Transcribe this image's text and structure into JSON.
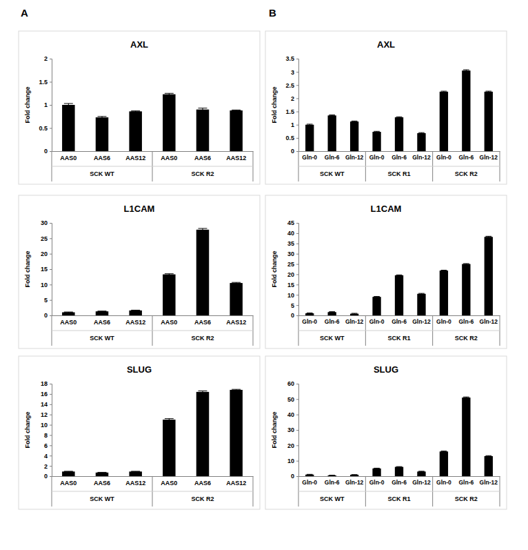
{
  "panel_labels": [
    "A",
    "B"
  ],
  "chart_data": [
    {
      "type": "bar",
      "title": "AXL",
      "y_label": "Fold change",
      "categories": [
        "AAS0",
        "AAS6",
        "AAS12",
        "AAS0",
        "AAS6",
        "AAS12"
      ],
      "category_groups": [
        "SCK WT",
        "SCK WT",
        "SCK WT",
        "SCK R2",
        "SCK R2",
        "SCK R2"
      ],
      "values": [
        1.0,
        0.73,
        0.86,
        1.23,
        0.9,
        0.88
      ],
      "errors": [
        0.03,
        0.02,
        0.01,
        0.02,
        0.03,
        0.01
      ],
      "color": "#000000",
      "grid": false,
      "ylim": [
        0,
        2
      ],
      "yticks": [
        0,
        0.5,
        1,
        1.5,
        2
      ]
    },
    {
      "type": "bar",
      "title": "L1CAM",
      "y_label": "Fold change",
      "categories": [
        "AAS0",
        "AAS6",
        "AAS12",
        "AAS0",
        "AAS6",
        "AAS12"
      ],
      "category_groups": [
        "SCK WT",
        "SCK WT",
        "SCK WT",
        "SCK R2",
        "SCK R2",
        "SCK R2"
      ],
      "values": [
        1.0,
        1.3,
        1.6,
        13.3,
        27.8,
        10.5
      ],
      "errors": [
        0.1,
        0.1,
        0.1,
        0.2,
        0.4,
        0.2
      ],
      "color": "#000000",
      "grid": false,
      "ylim": [
        0,
        30
      ],
      "yticks": [
        0,
        5,
        10,
        15,
        20,
        25,
        30
      ]
    },
    {
      "type": "bar",
      "title": "SLUG",
      "y_label": "Fold change",
      "categories": [
        "AAS0",
        "AAS6",
        "AAS12",
        "AAS0",
        "AAS6",
        "AAS12"
      ],
      "category_groups": [
        "SCK WT",
        "SCK WT",
        "SCK WT",
        "SCK R2",
        "SCK R2",
        "SCK R2"
      ],
      "values": [
        0.9,
        0.7,
        0.9,
        11.0,
        16.4,
        16.8
      ],
      "errors": [
        0.05,
        0.05,
        0.05,
        0.2,
        0.2,
        0.1
      ],
      "color": "#000000",
      "grid": false,
      "ylim": [
        0,
        18
      ],
      "yticks": [
        0,
        2,
        4,
        6,
        8,
        10,
        12,
        14,
        16,
        18
      ]
    },
    {
      "type": "bar",
      "title": "AXL",
      "y_label": "Fold change",
      "categories": [
        "Gln-0",
        "Gln-6",
        "Gln-12",
        "Gln-0",
        "Gln-6",
        "Gln-12",
        "Gln-0",
        "Gln-6",
        "Gln-12"
      ],
      "category_groups": [
        "SCK WT",
        "SCK WT",
        "SCK WT",
        "SCK R1",
        "SCK R1",
        "SCK R1",
        "SCK R2",
        "SCK R2",
        "SCK R2"
      ],
      "values": [
        1.0,
        1.35,
        1.12,
        0.73,
        1.28,
        0.68,
        2.25,
        3.05,
        2.25
      ],
      "errors": [
        0.02,
        0.02,
        0.02,
        0.02,
        0.02,
        0.02,
        0.02,
        0.03,
        0.02
      ],
      "color": "#000000",
      "grid": false,
      "ylim": [
        0,
        3.5
      ],
      "yticks": [
        0,
        0.5,
        1,
        1.5,
        2,
        2.5,
        3,
        3.5
      ]
    },
    {
      "type": "bar",
      "title": "L1CAM",
      "y_label": "Fold change",
      "categories": [
        "Gln-0",
        "Gln-6",
        "Gln-12",
        "Gln-0",
        "Gln-6",
        "Gln-12",
        "Gln-0",
        "Gln-6",
        "Gln-12"
      ],
      "category_groups": [
        "SCK WT",
        "SCK WT",
        "SCK WT",
        "SCK R1",
        "SCK R1",
        "SCK R1",
        "SCK R2",
        "SCK R2",
        "SCK R2"
      ],
      "values": [
        1.0,
        1.6,
        0.8,
        9.0,
        19.5,
        10.5,
        21.8,
        25.0,
        38.2
      ],
      "errors": [
        0.2,
        0.2,
        0.2,
        0.2,
        0.2,
        0.2,
        0.2,
        0.2,
        0.3
      ],
      "color": "#000000",
      "grid": false,
      "ylim": [
        0,
        45
      ],
      "yticks": [
        0,
        5,
        10,
        15,
        20,
        25,
        30,
        35,
        40,
        45
      ]
    },
    {
      "type": "bar",
      "title": "SLUG",
      "y_label": "Fold change",
      "categories": [
        "Gln-0",
        "Gln-6",
        "Gln-12",
        "Gln-0",
        "Gln-6",
        "Gln-12",
        "Gln-0",
        "Gln-6",
        "Gln-12"
      ],
      "category_groups": [
        "SCK WT",
        "SCK WT",
        "SCK WT",
        "SCK R1",
        "SCK R1",
        "SCK R1",
        "SCK R2",
        "SCK R2",
        "SCK R2"
      ],
      "values": [
        1.0,
        0.5,
        0.9,
        5.0,
        6.0,
        3.0,
        16.0,
        51.0,
        13.0
      ],
      "errors": [
        0.2,
        0.1,
        0.1,
        0.2,
        0.2,
        0.2,
        0.3,
        0.4,
        0.3
      ],
      "color": "#000000",
      "grid": false,
      "ylim": [
        0,
        60
      ],
      "yticks": [
        0,
        10,
        20,
        30,
        40,
        50,
        60
      ]
    }
  ]
}
